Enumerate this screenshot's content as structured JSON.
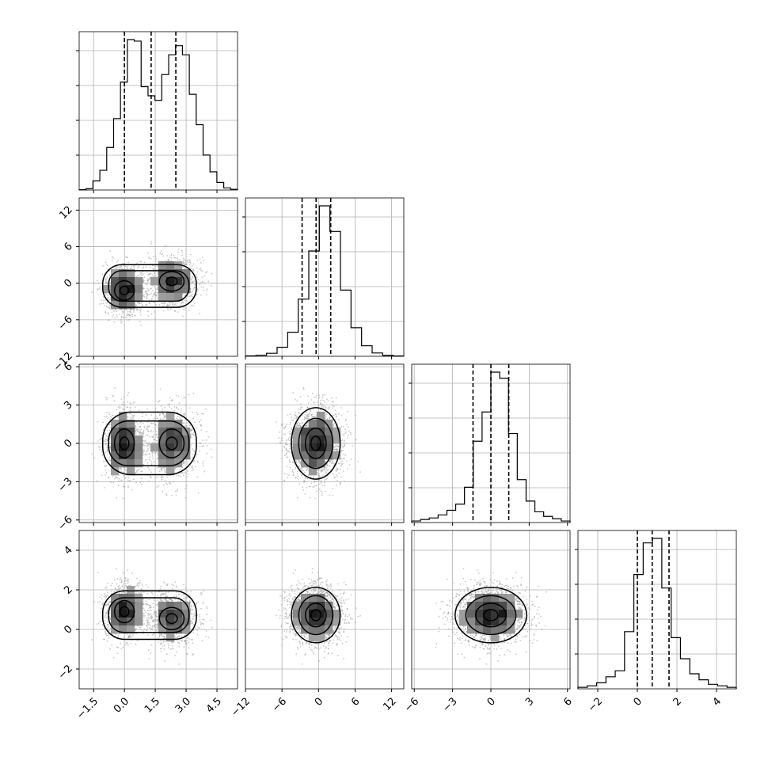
{
  "chart_data": {
    "type": "corner",
    "title": "",
    "grid": true,
    "quantile_lines": "dashed",
    "axes": [
      {
        "index": 0,
        "range": [
          -2.2,
          5.5
        ],
        "ticks": [
          -1.5,
          0.0,
          1.5,
          3.0,
          4.5
        ],
        "tick_labels": [
          "−1.5",
          "0.0",
          "1.5",
          "3.0",
          "4.5"
        ],
        "quantiles": [
          0.0,
          1.3,
          2.5
        ],
        "hist_bins": [
          0.002,
          0.009,
          0.06,
          0.13,
          0.28,
          0.47,
          0.71,
          0.99,
          0.98,
          0.68,
          0.62,
          0.59,
          0.76,
          0.89,
          0.95,
          0.89,
          0.63,
          0.43,
          0.23,
          0.12,
          0.05,
          0.014,
          0.005
        ],
        "blobs": [
          {
            "cx": 0.0,
            "sx": 0.48
          },
          {
            "cx": 2.3,
            "sx": 0.6
          }
        ]
      },
      {
        "index": 1,
        "range": [
          -12,
          14
        ],
        "ticks": [
          -12,
          -6,
          0,
          6,
          12
        ],
        "tick_labels": [
          "−12",
          "−6",
          "0",
          "6",
          "12"
        ],
        "quantiles": [
          -2.7,
          -0.4,
          2.0
        ],
        "hist_bins": [
          0.003,
          0.007,
          0.02,
          0.06,
          0.16,
          0.38,
          0.7,
          1.0,
          0.83,
          0.44,
          0.19,
          0.07,
          0.022,
          0.006,
          0.002
        ],
        "mean_per_blob": [
          -1.2,
          0.3
        ],
        "std": 2.0
      },
      {
        "index": 2,
        "range": [
          -6.2,
          6.2
        ],
        "ticks": [
          -6,
          -3,
          0,
          3,
          6
        ],
        "tick_labels": [
          "−6",
          "−3",
          "0",
          "3",
          "6"
        ],
        "quantiles": [
          -1.4,
          0.0,
          1.4
        ],
        "hist_bins": [
          0.01,
          0.02,
          0.03,
          0.05,
          0.08,
          0.12,
          0.23,
          0.53,
          0.72,
          0.98,
          0.94,
          0.58,
          0.28,
          0.14,
          0.07,
          0.04,
          0.025,
          0.01
        ],
        "mean_per_blob": [
          0.0,
          0.0
        ],
        "std": 1.4
      },
      {
        "index": 3,
        "range": [
          -3.0,
          5.0
        ],
        "ticks": [
          -2,
          0,
          2,
          4
        ],
        "tick_labels": [
          "−2",
          "0",
          "2",
          "4"
        ],
        "quantiles": [
          0.0,
          0.75,
          1.6
        ],
        "hist_bins": [
          0.01,
          0.02,
          0.04,
          0.08,
          0.12,
          0.38,
          0.76,
          0.97,
          1.0,
          0.67,
          0.34,
          0.2,
          0.1,
          0.06,
          0.03,
          0.02,
          0.01
        ],
        "mean_per_blob": [
          0.9,
          0.55
        ],
        "std": 0.7
      }
    ]
  }
}
